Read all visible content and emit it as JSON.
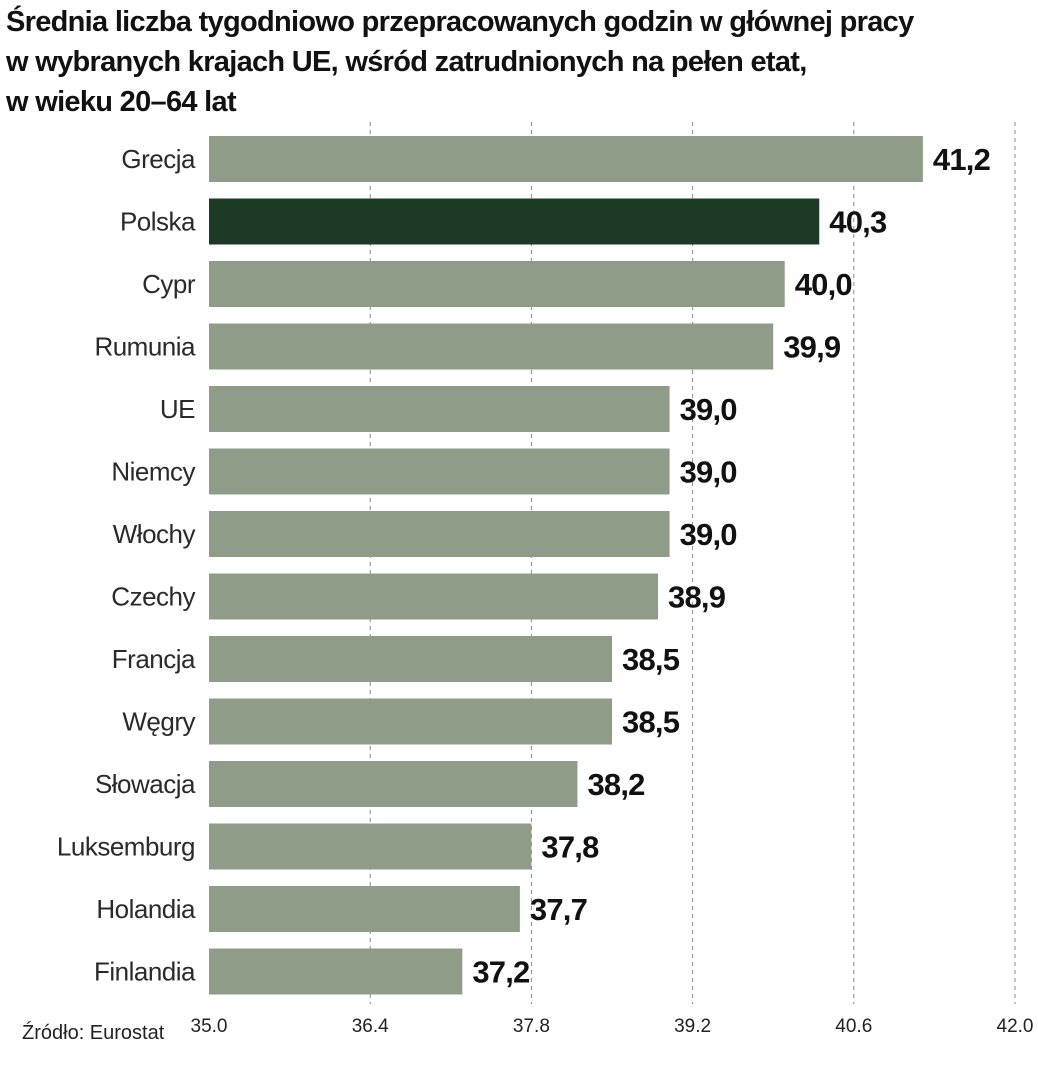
{
  "chart_data": {
    "type": "bar",
    "orientation": "horizontal",
    "title_lines": [
      "Średnia liczba tygodniowo przepracowanych godzin w głównej pracy",
      "w wybranych krajach UE, wśród zatrudnionych na pełen etat,",
      "w wieku 20–64 lat"
    ],
    "categories": [
      "Grecja",
      "Polska",
      "Cypr",
      "Rumunia",
      "UE",
      "Niemcy",
      "Włochy",
      "Czechy",
      "Francja",
      "Węgry",
      "Słowacja",
      "Luksemburg",
      "Holandia",
      "Finlandia"
    ],
    "values": [
      41.2,
      40.3,
      40.0,
      39.9,
      39.0,
      39.0,
      39.0,
      38.9,
      38.5,
      38.5,
      38.2,
      37.8,
      37.7,
      37.2
    ],
    "value_labels": [
      "41,2",
      "40,3",
      "40,0",
      "39,9",
      "39,0",
      "39,0",
      "39,0",
      "38,9",
      "38,5",
      "38,5",
      "38,2",
      "37,8",
      "37,7",
      "37,2"
    ],
    "highlight_category": "Polska",
    "xlim": [
      35.0,
      42.0
    ],
    "x_ticks": [
      35.0,
      36.4,
      37.8,
      39.2,
      40.6,
      42.0
    ],
    "x_tick_labels": [
      "35.0",
      "36.4",
      "37.8",
      "39.2",
      "40.6",
      "42.0"
    ],
    "xlabel": "",
    "ylabel": "",
    "grid": "vertical dashed",
    "legend": "none",
    "source": "Źródło: Eurostat",
    "colors": {
      "bar": "#8f9c87",
      "highlight": "#1c3a25",
      "grid": "#8a8a8a",
      "text": "#111111"
    }
  }
}
